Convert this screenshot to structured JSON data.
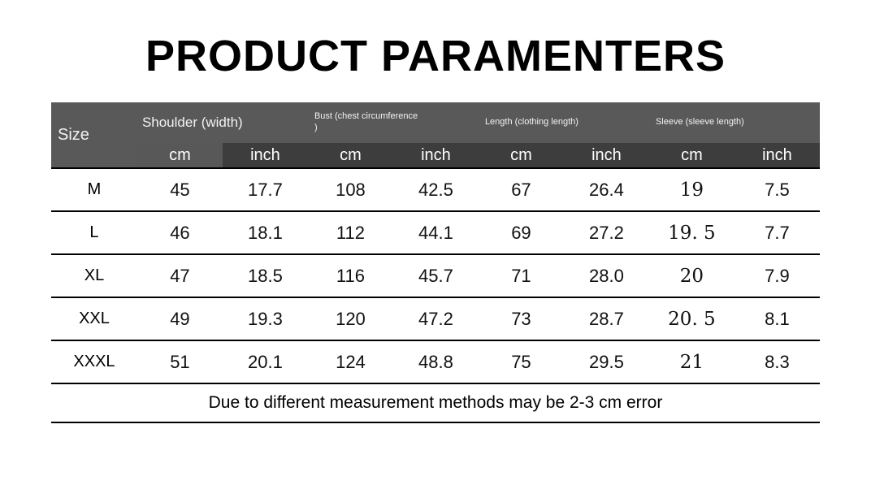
{
  "title": "PRODUCT PARAMENTERS",
  "table": {
    "size_label": "Size",
    "groups": [
      {
        "label": "Shoulder (width)"
      },
      {
        "label": "Bust (chest circumference\n)"
      },
      {
        "label": "Length (clothing length)"
      },
      {
        "label": "Sleeve (sleeve length)"
      }
    ],
    "unit_headers": [
      "cm",
      "inch",
      "cm",
      "inch",
      "cm",
      "inch",
      "cm",
      "inch"
    ],
    "rows": [
      {
        "size": "M",
        "values": [
          "45",
          "17.7",
          "108",
          "42.5",
          "67",
          "26.4",
          "19",
          "7.5"
        ]
      },
      {
        "size": "L",
        "values": [
          "46",
          "18.1",
          "112",
          "44.1",
          "69",
          "27.2",
          "19. 5",
          "7.7"
        ]
      },
      {
        "size": "XL",
        "values": [
          "47",
          "18.5",
          "116",
          "45.7",
          "71",
          "28.0",
          "20",
          "7.9"
        ]
      },
      {
        "size": "XXL",
        "values": [
          "49",
          "19.3",
          "120",
          "47.2",
          "73",
          "28.7",
          "20. 5",
          "8.1"
        ]
      },
      {
        "size": "XXXL",
        "values": [
          "51",
          "20.1",
          "124",
          "48.8",
          "75",
          "29.5",
          "21",
          "8.3"
        ]
      }
    ],
    "footer": "Due to different measurement methods may be 2-3 cm error"
  }
}
